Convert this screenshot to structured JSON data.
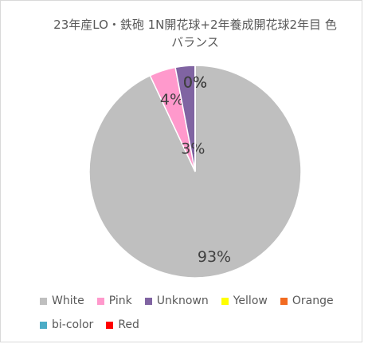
{
  "chart_data": {
    "type": "pie",
    "title": "23年産LO・鉄砲 1N開花球+2年養成開花球2年目 色バランス",
    "categories": [
      "White",
      "Pink",
      "Unknown",
      "Yellow",
      "Orange",
      "bi-color",
      "Red"
    ],
    "values": [
      93,
      4,
      3,
      0,
      0,
      0,
      0
    ],
    "value_labels": [
      "93%",
      "4%",
      "3%",
      "0%",
      "0%",
      "0%",
      "0%"
    ],
    "colors": [
      "#bfbfbf",
      "#ff99cc",
      "#8064a2",
      "#ffff00",
      "#f26b21",
      "#4bacc6",
      "#ff0000"
    ],
    "legend": "bottom"
  }
}
